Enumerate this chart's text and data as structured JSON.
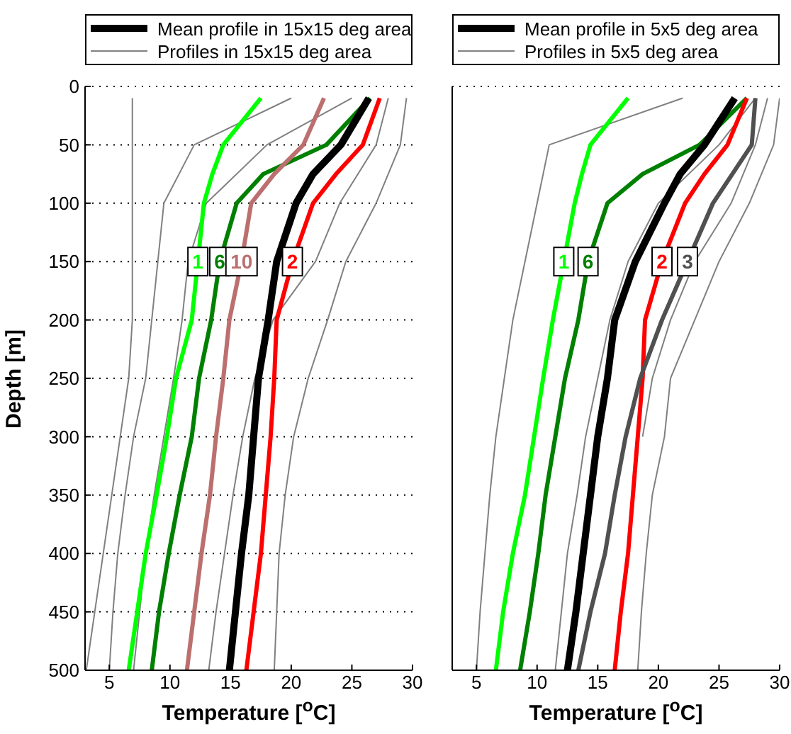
{
  "chart_data": [
    {
      "type": "line",
      "xlabel": "Temperature [$^{o}$C]",
      "ylabel": "Depth [m]",
      "xlim": [
        3,
        30
      ],
      "xticks": [
        5,
        10,
        15,
        20,
        25,
        30
      ],
      "ylim": [
        500,
        0
      ],
      "yticks": [
        0,
        50,
        100,
        150,
        200,
        250,
        300,
        350,
        400,
        450,
        500
      ],
      "grid": "y",
      "legend": "top",
      "series": [
        {
          "name": "Mean profile in 15x15 deg area",
          "color": "#000000",
          "x": [
            26.4,
            24.1,
            21.8,
            20.4,
            18.8,
            18.1,
            17.3,
            16.9,
            16.5,
            15.9,
            15.4,
            14.9
          ],
          "values": [
            10,
            50,
            75,
            100,
            150,
            200,
            250,
            300,
            350,
            400,
            450,
            500
          ]
        },
        {
          "name": "Profiles in 15x15 deg area",
          "color": "#808080",
          "x": [
            29.5,
            29,
            27,
            24.5,
            23,
            21.4,
            20.2,
            19.5,
            19,
            18.8,
            18.6
          ],
          "values": [
            10,
            50,
            100,
            150,
            200,
            250,
            300,
            350,
            400,
            450,
            500
          ]
        },
        {
          "color": "#808080",
          "x": [
            6.9,
            6.9,
            6.9,
            6.9,
            6.9,
            6.6,
            5.9,
            5.2,
            4.5,
            3.8,
            3.1
          ],
          "values": [
            10,
            50,
            100,
            150,
            200,
            250,
            300,
            350,
            400,
            450,
            500
          ]
        },
        {
          "color": "#808080",
          "x": [
            20,
            12,
            9.5,
            9,
            8.5,
            8,
            7,
            6.3,
            5.7,
            5.3,
            5
          ],
          "values": [
            10,
            50,
            100,
            150,
            200,
            250,
            300,
            350,
            400,
            450,
            500
          ]
        },
        {
          "color": "#808080",
          "x": [
            28,
            27,
            24,
            22,
            18.5,
            17,
            16,
            15.2,
            14.5,
            13.8,
            13.2
          ],
          "values": [
            10,
            50,
            100,
            150,
            200,
            250,
            300,
            350,
            400,
            450,
            500
          ]
        },
        {
          "color": "#808080",
          "x": [
            25,
            18,
            13,
            11.5,
            11,
            10.3,
            9.5,
            8.7,
            8,
            7.5,
            7
          ],
          "values": [
            10,
            50,
            100,
            150,
            200,
            250,
            300,
            350,
            400,
            450,
            500
          ]
        },
        {
          "name": "1",
          "color": "#00ff00",
          "x": [
            17.5,
            14.4,
            13.5,
            12.8,
            12.3,
            11.8,
            10.5,
            9.75,
            8.9,
            8,
            7.3,
            6.6
          ],
          "values": [
            10,
            50,
            75,
            100,
            150,
            200,
            250,
            300,
            350,
            400,
            450,
            500
          ]
        },
        {
          "name": "6",
          "color": "#008000",
          "x": [
            26.5,
            22.9,
            17.7,
            15.5,
            14.1,
            13.4,
            12.4,
            11.8,
            10.8,
            9.9,
            9.1,
            8.5
          ],
          "values": [
            10,
            50,
            75,
            100,
            150,
            200,
            250,
            300,
            350,
            400,
            450,
            500
          ]
        },
        {
          "name": "10",
          "color": "#bc6f6f",
          "x": [
            22.7,
            21,
            18.6,
            16.7,
            15.9,
            14.9,
            14.4,
            13.8,
            13.3,
            12.6,
            12,
            11.4
          ],
          "values": [
            10,
            50,
            75,
            100,
            150,
            200,
            250,
            300,
            350,
            400,
            450,
            500
          ]
        },
        {
          "name": "2",
          "color": "#ff0000",
          "x": [
            27.3,
            25.9,
            23.7,
            21.8,
            20.1,
            18.8,
            18.6,
            18.3,
            17.9,
            17.5,
            16.9,
            16.3
          ],
          "values": [
            10,
            50,
            75,
            100,
            150,
            200,
            250,
            300,
            350,
            400,
            450,
            500
          ]
        }
      ]
    },
    {
      "type": "line",
      "xlabel": "Temperature [$^{o}$C]",
      "xlim": [
        3,
        30
      ],
      "xticks": [
        5,
        10,
        15,
        20,
        25,
        30
      ],
      "ylim": [
        500,
        0
      ],
      "yticks": [
        0,
        50,
        100,
        150,
        200,
        250,
        300,
        350,
        400,
        450,
        500
      ],
      "grid": "y",
      "legend": "top",
      "tick_labels": "x",
      "series": [
        {
          "name": "Mean profile in 5x5 deg area",
          "color": "#000000",
          "x": [
            26.3,
            23.8,
            21.8,
            20.5,
            18.1,
            16.4,
            15.8,
            15,
            14.4,
            13.8,
            13.2,
            12.5
          ],
          "values": [
            10,
            50,
            75,
            100,
            150,
            200,
            250,
            300,
            350,
            400,
            450,
            500
          ]
        },
        {
          "name": "Profiles in 5x5 deg area",
          "color": "#808080",
          "x": [
            30,
            29.5,
            27.5,
            25,
            23,
            21,
            20.5,
            19.5,
            19,
            18.6,
            18.3
          ],
          "values": [
            10,
            50,
            100,
            150,
            200,
            250,
            300,
            350,
            400,
            450,
            500
          ]
        },
        {
          "color": "#808080",
          "x": [
            22,
            11,
            10,
            9,
            8,
            7.3,
            6.6,
            6.1,
            5.7,
            5.3,
            5
          ],
          "values": [
            10,
            50,
            100,
            150,
            200,
            250,
            300,
            350,
            400,
            450,
            500
          ]
        },
        {
          "color": "#808080",
          "x": [
            28,
            25,
            20,
            17.5,
            16,
            15,
            14,
            13.3,
            12.5,
            12,
            11.5
          ],
          "values": [
            10,
            50,
            100,
            150,
            200,
            250,
            300,
            350,
            400,
            450,
            500
          ]
        },
        {
          "color": "#808080",
          "x": [
            29,
            28,
            26,
            23,
            21,
            19.5,
            18.7
          ],
          "values": [
            10,
            50,
            100,
            150,
            200,
            250,
            300
          ]
        },
        {
          "name": "1",
          "color": "#00ff00",
          "x": [
            17.5,
            14.4,
            13.7,
            13.1,
            12.2,
            11.3,
            10.5,
            9.75,
            9,
            8,
            7.2,
            6.6
          ],
          "values": [
            10,
            50,
            75,
            100,
            150,
            200,
            250,
            300,
            350,
            400,
            450,
            500
          ]
        },
        {
          "name": "6",
          "color": "#008000",
          "x": [
            27.3,
            23.4,
            18.7,
            15.8,
            14.2,
            13.4,
            12.3,
            11.5,
            10.7,
            10.1,
            9.4,
            8.6
          ],
          "values": [
            10,
            50,
            75,
            100,
            150,
            200,
            250,
            300,
            350,
            400,
            450,
            500
          ]
        },
        {
          "name": "2",
          "color": "#ff0000",
          "x": [
            27.3,
            25.7,
            23.8,
            22.2,
            20.3,
            18.9,
            18.7,
            18.3,
            17.9,
            17.5,
            16.9,
            16.4
          ],
          "values": [
            10,
            50,
            75,
            100,
            150,
            200,
            250,
            300,
            350,
            400,
            450,
            500
          ]
        },
        {
          "name": "3",
          "color": "#505050",
          "x": [
            28,
            27.7,
            26.1,
            24.5,
            22.4,
            20.3,
            18.5,
            17.3,
            16.4,
            15.6,
            14.4,
            13.4
          ],
          "values": [
            10,
            50,
            75,
            100,
            150,
            200,
            250,
            300,
            350,
            400,
            450,
            500
          ]
        }
      ]
    }
  ]
}
